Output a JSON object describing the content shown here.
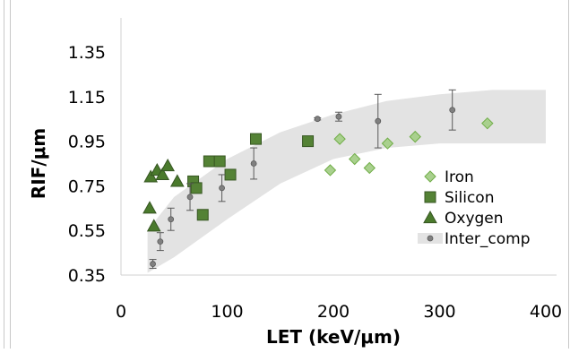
{
  "chart_data": {
    "type": "scatter",
    "xlabel": "LET (keV/μm)",
    "ylabel": "RIF/μm",
    "xlim": [
      0,
      400
    ],
    "ylim": [
      0.35,
      1.45
    ],
    "x_ticks": [
      "0",
      "100",
      "200",
      "300",
      "400"
    ],
    "y_ticks": [
      "0.35",
      "0.55",
      "0.75",
      "0.95",
      "1.15",
      "1.35"
    ],
    "grid": false,
    "legend_position": "right",
    "series": [
      {
        "name": "Iron",
        "marker": "diamond",
        "color": "#a9d08e",
        "stroke": "#70ad47",
        "points": [
          {
            "x": 197,
            "y": 0.82
          },
          {
            "x": 206,
            "y": 0.96
          },
          {
            "x": 220,
            "y": 0.87
          },
          {
            "x": 234,
            "y": 0.83
          },
          {
            "x": 251,
            "y": 0.94
          },
          {
            "x": 277,
            "y": 0.97
          },
          {
            "x": 345,
            "y": 1.03
          }
        ]
      },
      {
        "name": "Silicon",
        "marker": "square",
        "color": "#548235",
        "stroke": "#385723",
        "points": [
          {
            "x": 68,
            "y": 0.77
          },
          {
            "x": 71,
            "y": 0.74
          },
          {
            "x": 77,
            "y": 0.62
          },
          {
            "x": 83,
            "y": 0.86
          },
          {
            "x": 93,
            "y": 0.86
          },
          {
            "x": 103,
            "y": 0.8
          },
          {
            "x": 127,
            "y": 0.96
          },
          {
            "x": 176,
            "y": 0.95
          }
        ]
      },
      {
        "name": "Oxygen",
        "marker": "triangle",
        "color": "#4a7a2c",
        "stroke": "#375623",
        "points": [
          {
            "x": 27,
            "y": 0.65
          },
          {
            "x": 28,
            "y": 0.79
          },
          {
            "x": 31,
            "y": 0.57
          },
          {
            "x": 34,
            "y": 0.82
          },
          {
            "x": 39,
            "y": 0.8
          },
          {
            "x": 44,
            "y": 0.84
          },
          {
            "x": 53,
            "y": 0.77
          }
        ]
      },
      {
        "name": "Inter_comp",
        "marker": "dot-errorbar",
        "color": "#808080",
        "stroke": "#595959",
        "band_color": "#e3e3e3",
        "points": [
          {
            "x": 30,
            "y": 0.4,
            "err": 0.02
          },
          {
            "x": 37,
            "y": 0.5,
            "err": 0.04
          },
          {
            "x": 47,
            "y": 0.6,
            "err": 0.05
          },
          {
            "x": 65,
            "y": 0.7,
            "err": 0.06
          },
          {
            "x": 95,
            "y": 0.74,
            "err": 0.06
          },
          {
            "x": 125,
            "y": 0.85,
            "err": 0.07
          },
          {
            "x": 185,
            "y": 1.05,
            "err": 0.005
          },
          {
            "x": 205,
            "y": 1.06,
            "err": 0.02
          },
          {
            "x": 242,
            "y": 1.04,
            "err": 0.12
          },
          {
            "x": 312,
            "y": 1.09,
            "err": 0.09
          }
        ],
        "band_lower": [
          [
            25,
            0.36
          ],
          [
            50,
            0.43
          ],
          [
            100,
            0.6
          ],
          [
            150,
            0.76
          ],
          [
            200,
            0.87
          ],
          [
            250,
            0.92
          ],
          [
            300,
            0.94
          ],
          [
            350,
            0.94
          ],
          [
            400,
            0.94
          ]
        ],
        "band_upper": [
          [
            25,
            0.55
          ],
          [
            50,
            0.7
          ],
          [
            100,
            0.87
          ],
          [
            150,
            0.99
          ],
          [
            200,
            1.07
          ],
          [
            250,
            1.13
          ],
          [
            300,
            1.16
          ],
          [
            350,
            1.18
          ],
          [
            400,
            1.18
          ]
        ]
      }
    ]
  }
}
